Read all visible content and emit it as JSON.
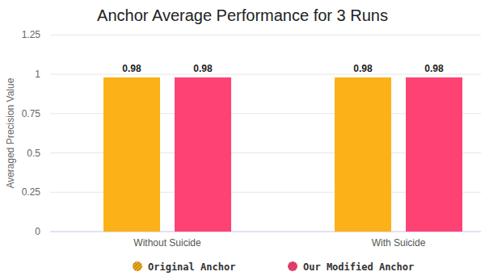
{
  "chart_data": {
    "type": "bar",
    "title": "Anchor Average Performance for 3 Runs",
    "y_label": "Averaged Precision Value",
    "categories": [
      "Without Suicide",
      "With Suicide"
    ],
    "series": [
      {
        "name": "Original Anchor",
        "color": "#fbb117",
        "values": [
          0.98,
          0.98
        ]
      },
      {
        "name": "Our Modified Anchor",
        "color": "#ff4274",
        "values": [
          0.98,
          0.98
        ]
      }
    ],
    "ylim": [
      0,
      1.25
    ],
    "yticks": [
      0,
      0.25,
      0.5,
      0.75,
      1,
      1.25
    ],
    "grid": true,
    "data_labels": true,
    "legend": "bottom"
  }
}
